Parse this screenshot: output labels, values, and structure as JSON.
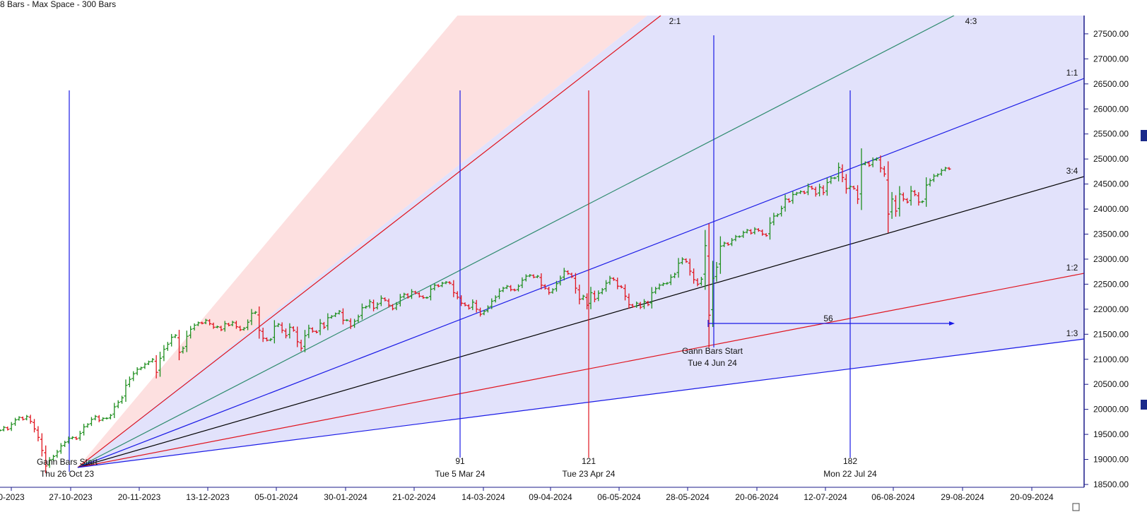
{
  "header": {
    "text": "8 Bars -  Max Space - 300 Bars"
  },
  "chart_data": {
    "type": "ohlc",
    "price_axis": {
      "ticks": [
        "18500.00",
        "19000.00",
        "19500.00",
        "20000.00",
        "20500.00",
        "21000.00",
        "21500.00",
        "22000.00",
        "22500.00",
        "23000.00",
        "23500.00",
        "24000.00",
        "24500.00",
        "25000.00",
        "25500.00",
        "26000.00",
        "26500.00",
        "27000.00",
        "27500.00"
      ],
      "ylim": [
        18500,
        27800
      ]
    },
    "date_axis": {
      "ticks": [
        "0-2023",
        "27-10-2023",
        "20-11-2023",
        "13-12-2023",
        "05-01-2024",
        "30-01-2024",
        "21-02-2024",
        "14-03-2024",
        "09-04-2024",
        "06-05-2024",
        "28-05-2024",
        "20-06-2024",
        "12-07-2024",
        "06-08-2024",
        "29-08-2024",
        "20-09-2024"
      ]
    },
    "gann_fan_1": {
      "origin_label": [
        "Gann Bars Start",
        "Thu 26 Oct 23"
      ],
      "origin_price": 18840,
      "ratio_labels": [
        "2:1",
        "4:3",
        "1:1",
        "3:4",
        "1:2",
        "1:3"
      ],
      "line_colors": {
        "2:1": "#e0141e",
        "4:3": "#2e8b6e",
        "1:1": "#1a1ae6",
        "3:4": "#000000",
        "1:2": "#e0141e",
        "1:3": "#1a1ae6"
      }
    },
    "gann_fan_2": {
      "origin_label": [
        "Gann Bars Start",
        "Tue 4 Jun 24"
      ],
      "measure_label": "56"
    },
    "time_markers": [
      {
        "count": "91",
        "date": "Tue 5 Mar 24",
        "color": "#1a1ae6"
      },
      {
        "count": "121",
        "date": "Tue 23 Apr 24",
        "color": "#e0141e"
      },
      {
        "count": "182",
        "date": "Mon 22 Jul 24",
        "color": "#1a1ae6"
      }
    ],
    "candle_colors": {
      "up": "#1f8f1f",
      "down": "#e0141e"
    },
    "bars_close": [
      19580,
      19640,
      19600,
      19700,
      19790,
      19840,
      19800,
      19860,
      19760,
      19610,
      19440,
      19180,
      18870,
      18990,
      19060,
      19150,
      19270,
      19340,
      19420,
      19440,
      19410,
      19520,
      19650,
      19700,
      19800,
      19860,
      19780,
      19820,
      19820,
      19880,
      20050,
      20140,
      20230,
      20480,
      20600,
      20710,
      20800,
      20830,
      20900,
      20950,
      21000,
      20740,
      21020,
      21200,
      21300,
      21440,
      21480,
      21140,
      21220,
      21460,
      21600,
      21680,
      21730,
      21720,
      21780,
      21710,
      21640,
      21650,
      21590,
      21710,
      21680,
      21740,
      21650,
      21590,
      21620,
      21740,
      21920,
      21940,
      21580,
      21420,
      21380,
      21400,
      21660,
      21700,
      21580,
      21470,
      21640,
      21580,
      21350,
      21220,
      21470,
      21620,
      21560,
      21540,
      21720,
      21640,
      21830,
      21860,
      21910,
      21960,
      21780,
      21780,
      21660,
      21760,
      21850,
      22030,
      22050,
      22150,
      22020,
      22100,
      22220,
      22180,
      22080,
      22010,
      22100,
      22240,
      22300,
      22240,
      22350,
      22320,
      22260,
      22230,
      22230,
      22400,
      22480,
      22460,
      22520,
      22540,
      22520,
      22330,
      22240,
      22120,
      22080,
      22020,
      22140,
      22000,
      21900,
      21960,
      22040,
      22160,
      22240,
      22360,
      22420,
      22460,
      22390,
      22380,
      22460,
      22580,
      22660,
      22680,
      22640,
      22660,
      22480,
      22420,
      22330,
      22390,
      22510,
      22620,
      22760,
      22710,
      22650,
      22420,
      22200,
      22260,
      22080,
      22330,
      22200,
      22320,
      22390,
      22520,
      22620,
      22590,
      22460,
      22440,
      22260,
      22090,
      22050,
      22120,
      22040,
      22150,
      22090,
      22330,
      22410,
      22480,
      22510,
      22520,
      22640,
      22700,
      22920,
      23000,
      22950,
      22760,
      22590,
      22500,
      22600,
      23270,
      21880,
      22620,
      22840,
      23260,
      23320,
      23290,
      23380,
      23450,
      23450,
      23530,
      23580,
      23520,
      23600,
      23570,
      23500,
      23470,
      23720,
      23860,
      23890,
      24010,
      24200,
      24150,
      24290,
      24320,
      24350,
      24320,
      24450,
      24410,
      24300,
      24440,
      24330,
      24530,
      24620,
      24620,
      24830,
      24630,
      24410,
      24450,
      24410,
      24200,
      24890,
      24930,
      24870,
      24980,
      25010,
      24820,
      24700,
      23900,
      24200,
      23960,
      24300,
      24200,
      24140,
      24360,
      24290,
      24140,
      24150,
      24480,
      24570,
      24660,
      24690,
      24770,
      24820,
      24800
    ]
  }
}
